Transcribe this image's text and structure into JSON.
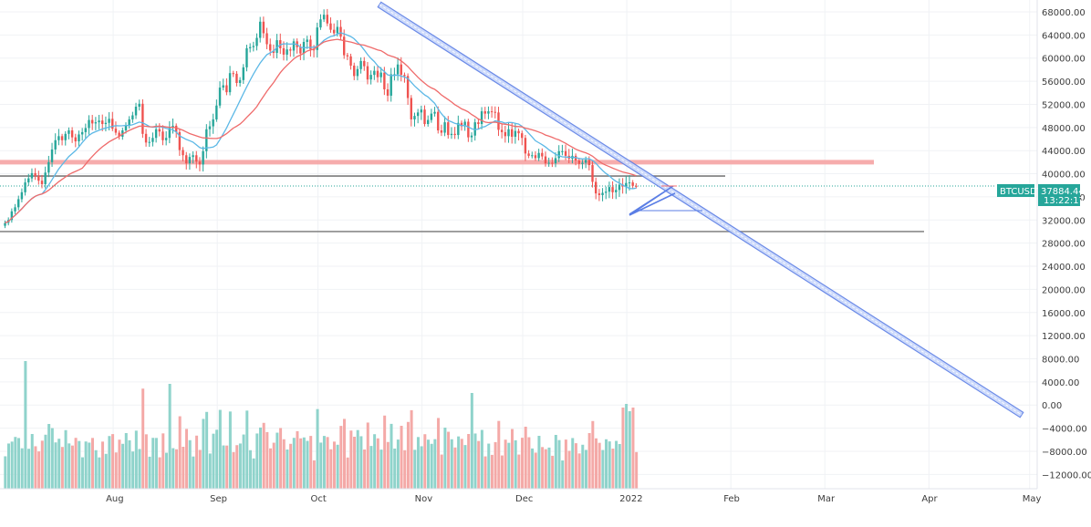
{
  "chart_data": {
    "type": "candlestick",
    "symbol": "BTCUSDT",
    "last_price": "37884.44",
    "countdown": "13:22:17",
    "y_axis": {
      "min": -12000,
      "max": 70000,
      "ticks": [
        {
          "value": 68000,
          "label": "68000.00"
        },
        {
          "value": 64000,
          "label": "64000.00"
        },
        {
          "value": 60000,
          "label": "60000.00"
        },
        {
          "value": 56000,
          "label": "56000.00"
        },
        {
          "value": 52000,
          "label": "52000.00"
        },
        {
          "value": 48000,
          "label": "48000.00"
        },
        {
          "value": 44000,
          "label": "44000.00"
        },
        {
          "value": 40000,
          "label": "40000.00"
        },
        {
          "value": 36000,
          "label": "36000.00"
        },
        {
          "value": 32000,
          "label": "32000.00"
        },
        {
          "value": 28000,
          "label": "28000.00"
        },
        {
          "value": 24000,
          "label": "24000.00"
        },
        {
          "value": 20000,
          "label": "20000.00"
        },
        {
          "value": 16000,
          "label": "16000.00"
        },
        {
          "value": 12000,
          "label": "12000.00"
        },
        {
          "value": 8000,
          "label": "8000.00"
        },
        {
          "value": 4000,
          "label": "4000.00"
        },
        {
          "value": 0,
          "label": "0.00"
        },
        {
          "value": -4000,
          "label": "−4000.00"
        },
        {
          "value": -8000,
          "label": "−8000.00"
        },
        {
          "value": -12000,
          "label": "−12000.00"
        }
      ]
    },
    "x_axis": {
      "start_day": 0,
      "end_day": 300,
      "ticks": [
        {
          "day": 31,
          "label": "Aug"
        },
        {
          "day": 62,
          "label": "Sep"
        },
        {
          "day": 92,
          "label": "Oct"
        },
        {
          "day": 123,
          "label": "Nov"
        },
        {
          "day": 153,
          "label": "Dec"
        },
        {
          "day": 184,
          "label": "2022"
        },
        {
          "day": 215,
          "label": "Feb"
        },
        {
          "day": 243,
          "label": "Mar"
        },
        {
          "day": 274,
          "label": "Apr"
        },
        {
          "day": 304,
          "label": "May"
        }
      ]
    },
    "support_lines": [
      {
        "price": 42000,
        "color": "#f5a3a3",
        "band": 800
      },
      {
        "price": 39600,
        "color": "#7b7b7b",
        "band": 0
      },
      {
        "price": 30000,
        "color": "#8a8a8a",
        "band": 0
      }
    ],
    "trendline": {
      "from_day": 112,
      "from_price": 69000,
      "to_day": 306,
      "to_price": 0,
      "color": "#5b7ee5"
    },
    "colors": {
      "up": "#26a69a",
      "down": "#ef5350",
      "up_volume": "#8fd3cb",
      "down_volume": "#f4a9a7",
      "ma_fast": "#5cb8e6",
      "ma_slow": "#ef6b6b",
      "grid": "#f0f2f5",
      "price_line": "#26a69a"
    },
    "closes": [
      31500,
      32000,
      33500,
      34200,
      35600,
      36800,
      38500,
      39200,
      40100,
      39600,
      38800,
      38200,
      40200,
      42000,
      44200,
      45800,
      46500,
      45800,
      46900,
      47500,
      46300,
      45600,
      46800,
      47200,
      47900,
      49300,
      48700,
      48900,
      49200,
      48600,
      48800,
      49500,
      47800,
      47100,
      46400,
      47500,
      48400,
      49400,
      50100,
      51600,
      52100,
      46900,
      45400,
      45500,
      46200,
      47700,
      47300,
      45800,
      46200,
      47900,
      48300,
      47200,
      44100,
      43200,
      41800,
      42900,
      43200,
      42100,
      41600,
      43900,
      47700,
      48200,
      49400,
      51800,
      54900,
      55300,
      54100,
      57400,
      57300,
      55700,
      56200,
      58400,
      61700,
      61900,
      62100,
      63500,
      66300,
      64300,
      62400,
      61300,
      60900,
      63100,
      61700,
      60600,
      61500,
      61300,
      62900,
      61900,
      60800,
      62800,
      63200,
      61500,
      61400,
      65300,
      66700,
      67500,
      66000,
      64900,
      64300,
      65400,
      63700,
      60500,
      60300,
      58700,
      56900,
      58100,
      59500,
      58600,
      56300,
      57100,
      57800,
      56700,
      57500,
      54600,
      53500,
      57200,
      57200,
      58900,
      57100,
      56900,
      53100,
      49400,
      50000,
      50600,
      51100,
      48600,
      49300,
      50400,
      50700,
      47500,
      47100,
      48900,
      46700,
      46900,
      46700,
      48800,
      48200,
      49000,
      46300,
      46600,
      48900,
      48600,
      50800,
      50400,
      50800,
      50700,
      50600,
      47600,
      47200,
      46500,
      47700,
      46400,
      47400,
      47000,
      46200,
      43500,
      43100,
      43200,
      42700,
      43600,
      43000,
      41800,
      41900,
      41800,
      42700,
      43900,
      43900,
      43100,
      42600,
      43100,
      42300,
      41700,
      41900,
      42400,
      41500,
      38600,
      36600,
      36300,
      36700,
      36900,
      37700,
      36800,
      37200,
      38100,
      37800,
      38400,
      38500,
      37900,
      37884
    ]
  }
}
